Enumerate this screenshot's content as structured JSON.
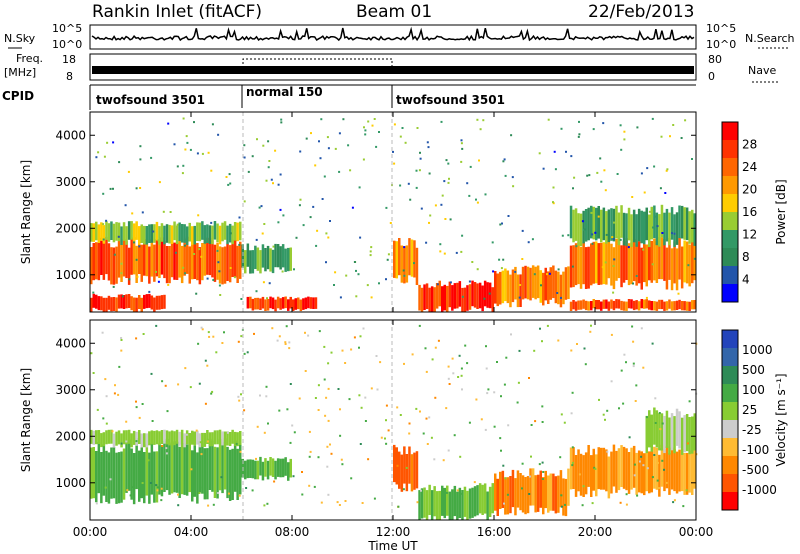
{
  "header": {
    "station": "Rankin Inlet (fitACF)",
    "beam": "Beam 01",
    "date": "22/Feb/2013"
  },
  "chart_data": [
    {
      "type": "line",
      "panel": "noise",
      "left_label": "N.Sky",
      "right_label": "N.Search",
      "left_ticks": [
        "10^5",
        "10^0"
      ],
      "right_ticks": [
        "10^5",
        "10^0"
      ]
    },
    {
      "type": "line",
      "panel": "frequency",
      "left_label": "Freq.",
      "left_unit": "[MHz]",
      "left_ticks": [
        "18",
        "8"
      ],
      "right_label": "Nave",
      "right_ticks": [
        "80",
        "0"
      ]
    },
    {
      "type": "table",
      "panel": "cpid",
      "label": "CPID",
      "segments": [
        {
          "name": "twofsound 3501",
          "start": 0,
          "end": 6
        },
        {
          "name": "normal 150",
          "start": 6,
          "end": 12
        },
        {
          "name": "twofsound 3501",
          "start": 12,
          "end": 24
        }
      ]
    },
    {
      "type": "heatmap",
      "panel": "power",
      "ylabel": "Slant Range [km]",
      "xlabel": "Time UT",
      "xlim": [
        0,
        24
      ],
      "ylim": [
        200,
        4500
      ],
      "x_ticks": [
        "00:00",
        "04:00",
        "08:00",
        "12:00",
        "16:00",
        "20:00",
        "00:00"
      ],
      "y_ticks": [
        1000,
        2000,
        3000,
        4000
      ],
      "colorbar": {
        "label": "Power [dB]",
        "ticks": [
          28,
          24,
          20,
          16,
          12,
          8,
          4
        ],
        "colors": [
          "#ff0000",
          "#ff3300",
          "#ff6600",
          "#ff9900",
          "#ffcc00",
          "#99cc33",
          "#339966",
          "#2e8b57",
          "#2255aa",
          "#0000ff"
        ]
      },
      "bands": [
        {
          "t0": 0.0,
          "t1": 6.0,
          "r0": 900,
          "r1": 1700,
          "value": 24
        },
        {
          "t0": 0.0,
          "t1": 6.0,
          "r0": 1700,
          "r1": 2100,
          "value": 14
        },
        {
          "t0": 0.0,
          "t1": 3.0,
          "r0": 250,
          "r1": 550,
          "value": 26
        },
        {
          "t0": 6.0,
          "t1": 8.0,
          "r0": 1100,
          "r1": 1600,
          "value": 12
        },
        {
          "t0": 6.2,
          "t1": 9.0,
          "r0": 250,
          "r1": 500,
          "value": 26
        },
        {
          "t0": 12.0,
          "t1": 13.0,
          "r0": 900,
          "r1": 1700,
          "value": 20
        },
        {
          "t0": 13.0,
          "t1": 16.0,
          "r0": 250,
          "r1": 800,
          "value": 26
        },
        {
          "t0": 16.0,
          "t1": 19.0,
          "r0": 400,
          "r1": 1100,
          "value": 22
        },
        {
          "t0": 19.0,
          "t1": 24.0,
          "r0": 800,
          "r1": 1700,
          "value": 22
        },
        {
          "t0": 19.0,
          "t1": 24.0,
          "r0": 1700,
          "r1": 2400,
          "value": 12
        },
        {
          "t0": 19.0,
          "t1": 24.0,
          "r0": 250,
          "r1": 450,
          "value": 24
        }
      ]
    },
    {
      "type": "heatmap",
      "panel": "velocity",
      "ylabel": "Slant Range [km]",
      "xlabel": "Time UT",
      "xlim": [
        0,
        24
      ],
      "ylim": [
        200,
        4500
      ],
      "x_ticks": [
        "00:00",
        "04:00",
        "08:00",
        "12:00",
        "16:00",
        "20:00",
        "00:00"
      ],
      "y_ticks": [
        1000,
        2000,
        3000,
        4000
      ],
      "colorbar": {
        "label": "Velocity [m s⁻¹]",
        "ticks": [
          "1000",
          "500",
          "100",
          "25",
          "-25",
          "-100",
          "-500",
          "-1000"
        ],
        "colors": [
          "#2244bb",
          "#3366aa",
          "#2e8b57",
          "#44aa44",
          "#88cc33",
          "#cccccc",
          "#ffbb33",
          "#ff8800",
          "#ff5500",
          "#ff0000"
        ]
      },
      "bands": [
        {
          "t0": 0.0,
          "t1": 6.0,
          "r0": 700,
          "r1": 1800,
          "value": 100
        },
        {
          "t0": 0.0,
          "t1": 6.0,
          "r0": 1800,
          "r1": 2100,
          "value": 25
        },
        {
          "t0": 6.0,
          "t1": 8.0,
          "r0": 1100,
          "r1": 1500,
          "value": 100
        },
        {
          "t0": 12.0,
          "t1": 13.0,
          "r0": 900,
          "r1": 1700,
          "value": -500
        },
        {
          "t0": 13.0,
          "t1": 16.0,
          "r0": 250,
          "r1": 900,
          "value": 60
        },
        {
          "t0": 16.0,
          "t1": 19.0,
          "r0": 400,
          "r1": 1200,
          "value": -300
        },
        {
          "t0": 19.0,
          "t1": 24.0,
          "r0": 800,
          "r1": 1700,
          "value": -200
        },
        {
          "t0": 22.0,
          "t1": 24.0,
          "r0": 1700,
          "r1": 2500,
          "value": 25
        }
      ]
    }
  ]
}
